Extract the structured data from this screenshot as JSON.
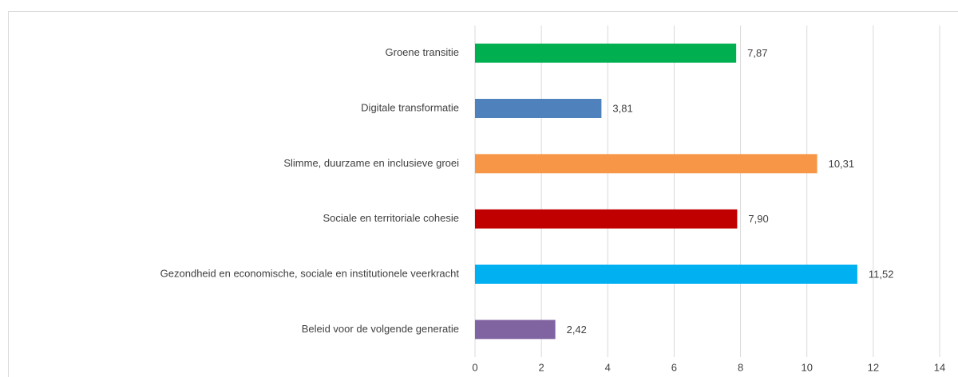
{
  "chart_data": {
    "type": "barh",
    "categories": [
      "Groene transitie",
      "Digitale transformatie",
      "Slimme, duurzame en inclusieve groei",
      "Sociale en territoriale cohesie",
      "Gezondheid en economische, sociale en institutionele veerkracht",
      "Beleid voor de volgende generatie"
    ],
    "values": [
      7.87,
      3.81,
      10.31,
      7.9,
      11.52,
      2.42
    ],
    "value_labels": [
      "7,87",
      "3,81",
      "10,31",
      "7,90",
      "11,52",
      "2,42"
    ],
    "colors": [
      "#00b050",
      "#4f81bd",
      "#f79646",
      "#c00000",
      "#00b0f0",
      "#8064a2"
    ],
    "xlim": [
      0,
      14
    ],
    "xticks": [
      0,
      2,
      4,
      6,
      8,
      10,
      12,
      14
    ],
    "grid": true
  }
}
